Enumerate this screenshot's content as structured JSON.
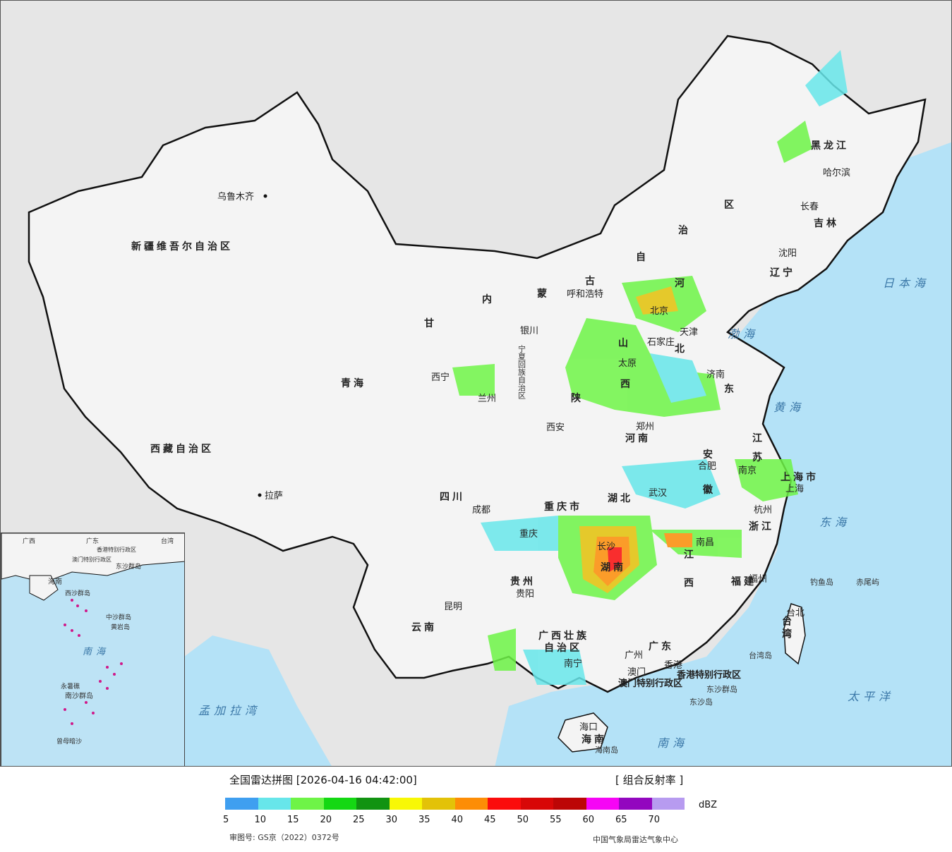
{
  "legend": {
    "title": "全国雷达拼图 [2026-04-16 04:42:00]",
    "product": "[ 组合反射率 ]",
    "unit": "dBZ",
    "approval": "审图号: GS京（2022）0372号",
    "source": "中国气象局雷达气象中心",
    "scale_colors": [
      "#3f9ff0",
      "#67e6ea",
      "#6ef447",
      "#14d813",
      "#119311",
      "#f8f805",
      "#e3c208",
      "#fd8d06",
      "#fb0c0c",
      "#d80707",
      "#bc0505",
      "#f605f5",
      "#9307bf",
      "#b79bf0"
    ],
    "tick_labels": [
      "5",
      "10",
      "15",
      "20",
      "25",
      "30",
      "35",
      "40",
      "45",
      "50",
      "55",
      "60",
      "65",
      "70"
    ]
  },
  "map": {
    "provinces": [
      "新疆维吾尔自治区",
      "西藏自治区",
      "青海",
      "甘",
      "内",
      "蒙",
      "古",
      "自",
      "治",
      "区",
      "黑龙江",
      "吉林",
      "辽宁",
      "河",
      "北",
      "山",
      "东",
      "西",
      "河南",
      "陕",
      "四川",
      "重庆市",
      "湖北",
      "湖南",
      "安",
      "徽",
      "江",
      "苏",
      "浙江",
      "江",
      "西",
      "福建",
      "贵州",
      "云南",
      "广西壮族",
      "自治区",
      "广东",
      "海南",
      "宁夏回族自治区",
      "台湾",
      "上海市"
    ],
    "cities": [
      "乌鲁木齐",
      "拉萨",
      "西宁",
      "兰州",
      "银川",
      "呼和浩特",
      "北京",
      "天津",
      "石家庄",
      "太原",
      "济南",
      "郑州",
      "西安",
      "成都",
      "重庆",
      "武汉",
      "合肥",
      "南京",
      "上海",
      "杭州",
      "南昌",
      "长沙",
      "贵阳",
      "昆明",
      "南宁",
      "广州",
      "香港",
      "澳门",
      "海口",
      "福州",
      "台北",
      "哈尔滨",
      "长春",
      "沈阳"
    ],
    "islands": [
      "钓鱼岛",
      "赤尾屿",
      "台湾岛",
      "东沙群岛",
      "东沙岛",
      "海南岛"
    ],
    "sar": [
      "香港特别行政区",
      "澳门特别行政区"
    ],
    "seas": [
      "渤海",
      "黄海",
      "东海",
      "南海",
      "太平洋",
      "日本海",
      "孟加拉湾"
    ],
    "inset_labels": [
      "南海",
      "海南",
      "东沙群岛",
      "西沙群岛",
      "中沙群岛",
      "黄岩岛",
      "南沙群岛",
      "曾母暗沙",
      "永暑礁",
      "台湾",
      "广东",
      "广西",
      "香港特别行政区",
      "澳门特别行政区"
    ]
  }
}
